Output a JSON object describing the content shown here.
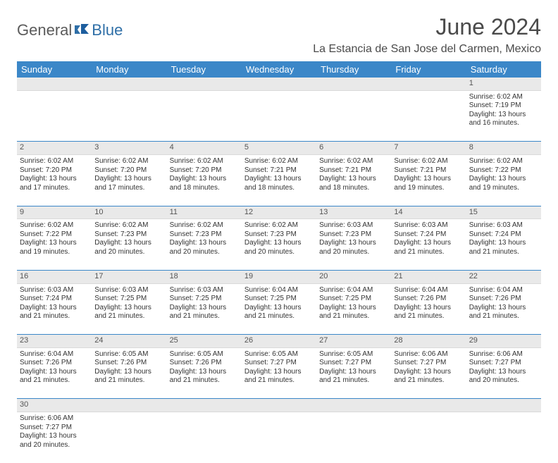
{
  "brand": {
    "general": "General",
    "blue": "Blue"
  },
  "title": "June 2024",
  "location": "La Estancia de San Jose del Carmen, Mexico",
  "colors": {
    "header_bg": "#3b87c8",
    "header_text": "#ffffff",
    "daynum_bg": "#e9e9e9",
    "text": "#333333",
    "brand_gray": "#5b5b5b",
    "brand_blue": "#2f6fa7"
  },
  "weekdays": [
    "Sunday",
    "Monday",
    "Tuesday",
    "Wednesday",
    "Thursday",
    "Friday",
    "Saturday"
  ],
  "weeks": [
    [
      {
        "n": "",
        "lines": [
          "",
          "",
          "",
          ""
        ]
      },
      {
        "n": "",
        "lines": [
          "",
          "",
          "",
          ""
        ]
      },
      {
        "n": "",
        "lines": [
          "",
          "",
          "",
          ""
        ]
      },
      {
        "n": "",
        "lines": [
          "",
          "",
          "",
          ""
        ]
      },
      {
        "n": "",
        "lines": [
          "",
          "",
          "",
          ""
        ]
      },
      {
        "n": "",
        "lines": [
          "",
          "",
          "",
          ""
        ]
      },
      {
        "n": "1",
        "lines": [
          "Sunrise: 6:02 AM",
          "Sunset: 7:19 PM",
          "Daylight: 13 hours",
          "and 16 minutes."
        ]
      }
    ],
    [
      {
        "n": "2",
        "lines": [
          "Sunrise: 6:02 AM",
          "Sunset: 7:20 PM",
          "Daylight: 13 hours",
          "and 17 minutes."
        ]
      },
      {
        "n": "3",
        "lines": [
          "Sunrise: 6:02 AM",
          "Sunset: 7:20 PM",
          "Daylight: 13 hours",
          "and 17 minutes."
        ]
      },
      {
        "n": "4",
        "lines": [
          "Sunrise: 6:02 AM",
          "Sunset: 7:20 PM",
          "Daylight: 13 hours",
          "and 18 minutes."
        ]
      },
      {
        "n": "5",
        "lines": [
          "Sunrise: 6:02 AM",
          "Sunset: 7:21 PM",
          "Daylight: 13 hours",
          "and 18 minutes."
        ]
      },
      {
        "n": "6",
        "lines": [
          "Sunrise: 6:02 AM",
          "Sunset: 7:21 PM",
          "Daylight: 13 hours",
          "and 18 minutes."
        ]
      },
      {
        "n": "7",
        "lines": [
          "Sunrise: 6:02 AM",
          "Sunset: 7:21 PM",
          "Daylight: 13 hours",
          "and 19 minutes."
        ]
      },
      {
        "n": "8",
        "lines": [
          "Sunrise: 6:02 AM",
          "Sunset: 7:22 PM",
          "Daylight: 13 hours",
          "and 19 minutes."
        ]
      }
    ],
    [
      {
        "n": "9",
        "lines": [
          "Sunrise: 6:02 AM",
          "Sunset: 7:22 PM",
          "Daylight: 13 hours",
          "and 19 minutes."
        ]
      },
      {
        "n": "10",
        "lines": [
          "Sunrise: 6:02 AM",
          "Sunset: 7:23 PM",
          "Daylight: 13 hours",
          "and 20 minutes."
        ]
      },
      {
        "n": "11",
        "lines": [
          "Sunrise: 6:02 AM",
          "Sunset: 7:23 PM",
          "Daylight: 13 hours",
          "and 20 minutes."
        ]
      },
      {
        "n": "12",
        "lines": [
          "Sunrise: 6:02 AM",
          "Sunset: 7:23 PM",
          "Daylight: 13 hours",
          "and 20 minutes."
        ]
      },
      {
        "n": "13",
        "lines": [
          "Sunrise: 6:03 AM",
          "Sunset: 7:23 PM",
          "Daylight: 13 hours",
          "and 20 minutes."
        ]
      },
      {
        "n": "14",
        "lines": [
          "Sunrise: 6:03 AM",
          "Sunset: 7:24 PM",
          "Daylight: 13 hours",
          "and 21 minutes."
        ]
      },
      {
        "n": "15",
        "lines": [
          "Sunrise: 6:03 AM",
          "Sunset: 7:24 PM",
          "Daylight: 13 hours",
          "and 21 minutes."
        ]
      }
    ],
    [
      {
        "n": "16",
        "lines": [
          "Sunrise: 6:03 AM",
          "Sunset: 7:24 PM",
          "Daylight: 13 hours",
          "and 21 minutes."
        ]
      },
      {
        "n": "17",
        "lines": [
          "Sunrise: 6:03 AM",
          "Sunset: 7:25 PM",
          "Daylight: 13 hours",
          "and 21 minutes."
        ]
      },
      {
        "n": "18",
        "lines": [
          "Sunrise: 6:03 AM",
          "Sunset: 7:25 PM",
          "Daylight: 13 hours",
          "and 21 minutes."
        ]
      },
      {
        "n": "19",
        "lines": [
          "Sunrise: 6:04 AM",
          "Sunset: 7:25 PM",
          "Daylight: 13 hours",
          "and 21 minutes."
        ]
      },
      {
        "n": "20",
        "lines": [
          "Sunrise: 6:04 AM",
          "Sunset: 7:25 PM",
          "Daylight: 13 hours",
          "and 21 minutes."
        ]
      },
      {
        "n": "21",
        "lines": [
          "Sunrise: 6:04 AM",
          "Sunset: 7:26 PM",
          "Daylight: 13 hours",
          "and 21 minutes."
        ]
      },
      {
        "n": "22",
        "lines": [
          "Sunrise: 6:04 AM",
          "Sunset: 7:26 PM",
          "Daylight: 13 hours",
          "and 21 minutes."
        ]
      }
    ],
    [
      {
        "n": "23",
        "lines": [
          "Sunrise: 6:04 AM",
          "Sunset: 7:26 PM",
          "Daylight: 13 hours",
          "and 21 minutes."
        ]
      },
      {
        "n": "24",
        "lines": [
          "Sunrise: 6:05 AM",
          "Sunset: 7:26 PM",
          "Daylight: 13 hours",
          "and 21 minutes."
        ]
      },
      {
        "n": "25",
        "lines": [
          "Sunrise: 6:05 AM",
          "Sunset: 7:26 PM",
          "Daylight: 13 hours",
          "and 21 minutes."
        ]
      },
      {
        "n": "26",
        "lines": [
          "Sunrise: 6:05 AM",
          "Sunset: 7:27 PM",
          "Daylight: 13 hours",
          "and 21 minutes."
        ]
      },
      {
        "n": "27",
        "lines": [
          "Sunrise: 6:05 AM",
          "Sunset: 7:27 PM",
          "Daylight: 13 hours",
          "and 21 minutes."
        ]
      },
      {
        "n": "28",
        "lines": [
          "Sunrise: 6:06 AM",
          "Sunset: 7:27 PM",
          "Daylight: 13 hours",
          "and 21 minutes."
        ]
      },
      {
        "n": "29",
        "lines": [
          "Sunrise: 6:06 AM",
          "Sunset: 7:27 PM",
          "Daylight: 13 hours",
          "and 20 minutes."
        ]
      }
    ],
    [
      {
        "n": "30",
        "lines": [
          "Sunrise: 6:06 AM",
          "Sunset: 7:27 PM",
          "Daylight: 13 hours",
          "and 20 minutes."
        ]
      },
      {
        "n": "",
        "lines": [
          "",
          "",
          "",
          ""
        ]
      },
      {
        "n": "",
        "lines": [
          "",
          "",
          "",
          ""
        ]
      },
      {
        "n": "",
        "lines": [
          "",
          "",
          "",
          ""
        ]
      },
      {
        "n": "",
        "lines": [
          "",
          "",
          "",
          ""
        ]
      },
      {
        "n": "",
        "lines": [
          "",
          "",
          "",
          ""
        ]
      },
      {
        "n": "",
        "lines": [
          "",
          "",
          "",
          ""
        ]
      }
    ]
  ]
}
